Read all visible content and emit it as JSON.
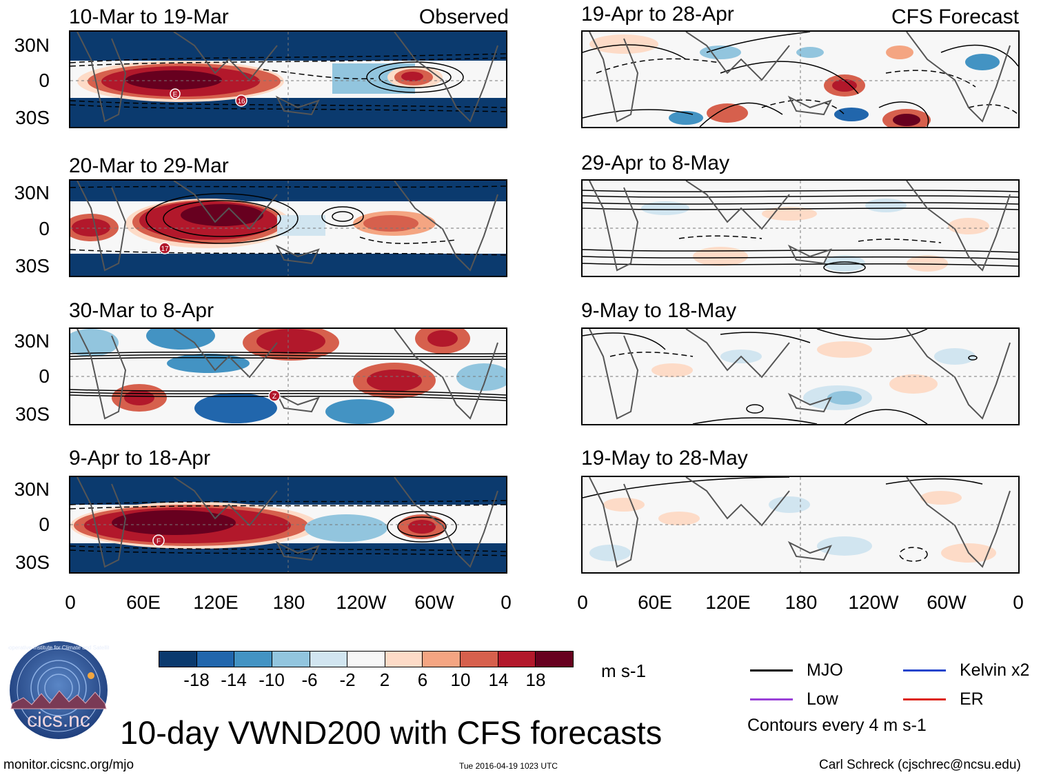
{
  "figure": {
    "title": "10-day VWND200 with CFS forecasts",
    "left_tag": "Observed",
    "right_tag": "CFS Forecast",
    "footer_left": "monitor.cicsnc.org/mjo",
    "footer_center": "Tue 2016-04-19 1023 UTC",
    "footer_right": "Carl Schreck (cjschrec@ncsu.edu)"
  },
  "panels": {
    "observed": [
      {
        "title": "10-Mar to 19-Mar"
      },
      {
        "title": "20-Mar to 29-Mar"
      },
      {
        "title": "30-Mar to 8-Apr"
      },
      {
        "title": "9-Apr to 18-Apr"
      }
    ],
    "forecast": [
      {
        "title": "19-Apr to 28-Apr"
      },
      {
        "title": "29-Apr to 8-May"
      },
      {
        "title": "9-May to 18-May"
      },
      {
        "title": "19-May to 28-May"
      }
    ]
  },
  "markers": [
    {
      "label": "E"
    },
    {
      "label": "16"
    },
    {
      "label": "17"
    },
    {
      "label": "Z"
    },
    {
      "label": "F"
    }
  ],
  "axes": {
    "y_ticks": [
      "30N",
      "0",
      "30S"
    ],
    "x_ticks": [
      "0",
      "60E",
      "120E",
      "180",
      "120W",
      "60W",
      "0"
    ]
  },
  "colorbar": {
    "units": "m s-1",
    "labels": [
      "-18",
      "-14",
      "-10",
      "-6",
      "-2",
      "2",
      "6",
      "10",
      "14",
      "18"
    ],
    "colors": [
      "#0b3a6e",
      "#2166ac",
      "#4393c3",
      "#92c5de",
      "#d1e5f0",
      "#f7f7f7",
      "#fddbc7",
      "#f4a582",
      "#d6604d",
      "#b2182b",
      "#67001f"
    ]
  },
  "legend": {
    "items": [
      {
        "label": "MJO",
        "color": "#000000"
      },
      {
        "label": "Kelvin x2",
        "color": "#2244cc"
      },
      {
        "label": "Low",
        "color": "#9a40d8"
      },
      {
        "label": "ER",
        "color": "#dd2211"
      }
    ],
    "note": "Contours every 4 m s-1"
  },
  "logo": {
    "text": "cics.nc",
    "ring_text": "Cooperative Institute for Climate and Satellites"
  }
}
